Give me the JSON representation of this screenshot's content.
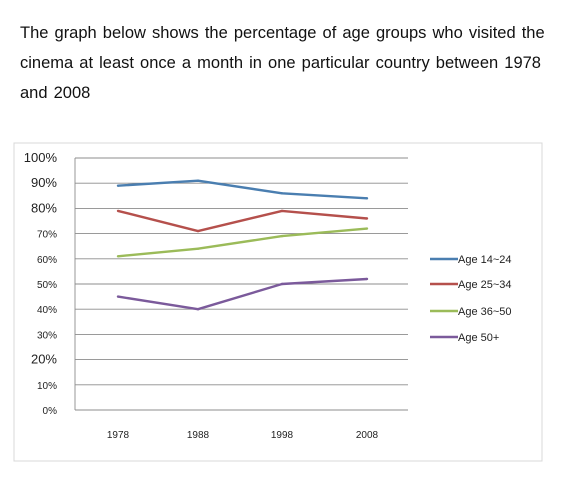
{
  "intro": {
    "text": "The graph below shows the percentage of age groups who visited the cinema at least once a month in one particular country between 1978 and 2008"
  },
  "chart_data": {
    "type": "line",
    "title": "",
    "xlabel": "",
    "ylabel": "",
    "x": [
      "1978",
      "1988",
      "1998",
      "2008"
    ],
    "y_ticks": [
      "100%",
      "90%",
      "80%",
      "70%",
      "60%",
      "50%",
      "40%",
      "30%",
      "20%",
      "10%",
      "0%"
    ],
    "ylim": [
      0,
      100
    ],
    "grid": true,
    "legend_position": "right",
    "series": [
      {
        "name": "Age  14~24",
        "values": [
          89,
          91,
          86,
          84
        ],
        "color": "#4a7eb0"
      },
      {
        "name": "Age  25~34",
        "values": [
          79,
          71,
          79,
          76
        ],
        "color": "#b5504c"
      },
      {
        "name": "Age  36~50",
        "values": [
          61,
          64,
          69,
          72
        ],
        "color": "#9bbb59"
      },
      {
        "name": "Age 50+",
        "values": [
          45,
          40,
          50,
          52
        ],
        "color": "#7b5a9b"
      }
    ]
  }
}
